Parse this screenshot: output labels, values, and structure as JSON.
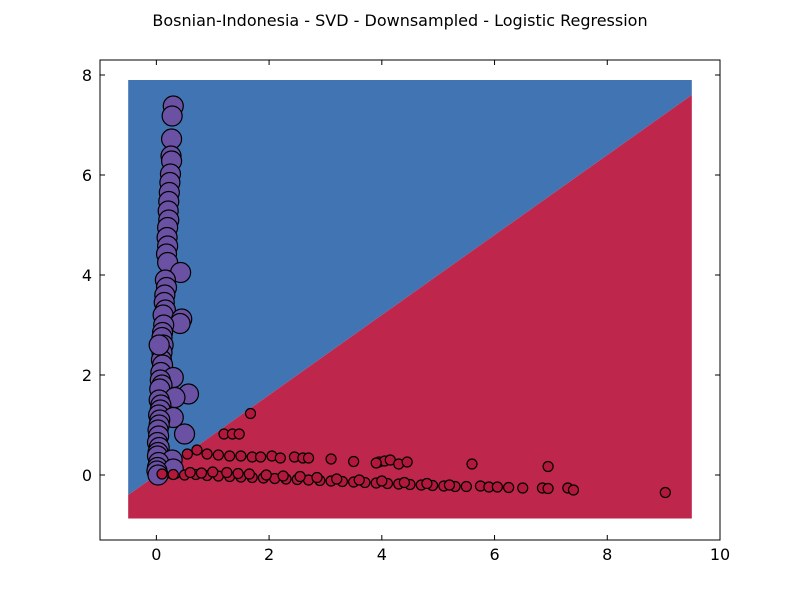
{
  "chart_data": {
    "type": "scatter",
    "title": "Bosnian-Indonesia - SVD - Downsampled - Logistic Regression",
    "xlabel": "",
    "ylabel": "",
    "xlim": [
      -1,
      10
    ],
    "ylim": [
      -1.3,
      8.3
    ],
    "xticks": [
      0,
      2,
      4,
      6,
      8,
      10
    ],
    "yticks": [
      0,
      2,
      4,
      6,
      8
    ],
    "xtick_labels": [
      "0",
      "2",
      "4",
      "6",
      "8",
      "10"
    ],
    "ytick_labels": [
      "0",
      "2",
      "4",
      "6",
      "8"
    ],
    "grid": false,
    "decision_regions": {
      "x_range": [
        -0.5,
        9.5
      ],
      "y_range": [
        -0.87,
        7.9
      ],
      "boundary": {
        "slope": 0.8,
        "intercept": 0.0
      },
      "upper_color": "#4174b3",
      "lower_color": "#bf264b"
    },
    "series": [
      {
        "color": "#6a51a3",
        "marker": "large",
        "points": [
          [
            0.3,
            7.38
          ],
          [
            0.28,
            7.18
          ],
          [
            0.27,
            6.72
          ],
          [
            0.26,
            6.38
          ],
          [
            0.27,
            6.28
          ],
          [
            0.25,
            6.02
          ],
          [
            0.24,
            5.85
          ],
          [
            0.23,
            5.65
          ],
          [
            0.22,
            5.47
          ],
          [
            0.21,
            5.28
          ],
          [
            0.22,
            5.1
          ],
          [
            0.2,
            4.95
          ],
          [
            0.19,
            4.75
          ],
          [
            0.2,
            4.58
          ],
          [
            0.18,
            4.42
          ],
          [
            0.2,
            4.25
          ],
          [
            0.43,
            4.05
          ],
          [
            0.16,
            3.9
          ],
          [
            0.18,
            3.75
          ],
          [
            0.15,
            3.6
          ],
          [
            0.14,
            3.45
          ],
          [
            0.16,
            3.3
          ],
          [
            0.12,
            3.2
          ],
          [
            0.45,
            3.12
          ],
          [
            0.42,
            3.03
          ],
          [
            0.13,
            3.0
          ],
          [
            0.11,
            2.85
          ],
          [
            0.1,
            2.75
          ],
          [
            0.12,
            2.6
          ],
          [
            0.1,
            2.45
          ],
          [
            0.09,
            2.3
          ],
          [
            0.11,
            2.2
          ],
          [
            0.08,
            2.05
          ],
          [
            0.3,
            1.95
          ],
          [
            0.07,
            1.9
          ],
          [
            0.1,
            1.8
          ],
          [
            0.06,
            1.72
          ],
          [
            0.57,
            1.62
          ],
          [
            0.33,
            1.55
          ],
          [
            0.05,
            1.5
          ],
          [
            0.08,
            1.4
          ],
          [
            0.07,
            1.3
          ],
          [
            0.04,
            1.2
          ],
          [
            0.3,
            1.15
          ],
          [
            0.06,
            1.1
          ],
          [
            0.05,
            1.0
          ],
          [
            0.03,
            0.9
          ],
          [
            0.5,
            0.82
          ],
          [
            0.04,
            0.78
          ],
          [
            0.02,
            0.65
          ],
          [
            0.05,
            0.55
          ],
          [
            0.03,
            0.45
          ],
          [
            0.02,
            0.38
          ],
          [
            0.28,
            0.3
          ],
          [
            0.04,
            0.25
          ],
          [
            0.02,
            0.15
          ],
          [
            0.3,
            0.12
          ],
          [
            0.01,
            0.08
          ],
          [
            0.03,
            0.0
          ],
          [
            0.05,
            2.6
          ]
        ]
      },
      {
        "color": "#b2183b",
        "marker": "small",
        "points": [
          [
            1.67,
            1.23
          ],
          [
            1.2,
            0.82
          ],
          [
            1.35,
            0.82
          ],
          [
            1.47,
            0.82
          ],
          [
            0.55,
            0.42
          ],
          [
            0.72,
            0.5
          ],
          [
            0.9,
            0.42
          ],
          [
            1.1,
            0.4
          ],
          [
            1.3,
            0.38
          ],
          [
            1.5,
            0.38
          ],
          [
            1.7,
            0.36
          ],
          [
            1.85,
            0.36
          ],
          [
            2.05,
            0.38
          ],
          [
            2.2,
            0.34
          ],
          [
            2.45,
            0.36
          ],
          [
            2.6,
            0.34
          ],
          [
            2.7,
            0.34
          ],
          [
            3.1,
            0.32
          ],
          [
            3.5,
            0.27
          ],
          [
            3.95,
            0.26
          ],
          [
            4.05,
            0.28
          ],
          [
            4.15,
            0.3
          ],
          [
            4.3,
            0.22
          ],
          [
            4.45,
            0.26
          ],
          [
            5.6,
            0.22
          ],
          [
            6.95,
            0.17
          ],
          [
            3.9,
            0.24
          ],
          [
            0.1,
            0.02
          ],
          [
            0.3,
            0.01
          ],
          [
            0.5,
            0.0
          ],
          [
            0.7,
            0.01
          ],
          [
            0.9,
            -0.01
          ],
          [
            1.1,
            -0.02
          ],
          [
            1.3,
            -0.03
          ],
          [
            1.5,
            -0.04
          ],
          [
            1.7,
            -0.05
          ],
          [
            1.9,
            -0.06
          ],
          [
            2.1,
            -0.07
          ],
          [
            2.3,
            -0.08
          ],
          [
            2.5,
            -0.09
          ],
          [
            2.7,
            -0.1
          ],
          [
            2.9,
            -0.11
          ],
          [
            3.1,
            -0.12
          ],
          [
            3.3,
            -0.13
          ],
          [
            3.5,
            -0.14
          ],
          [
            3.7,
            -0.15
          ],
          [
            3.9,
            -0.16
          ],
          [
            4.1,
            -0.17
          ],
          [
            4.3,
            -0.18
          ],
          [
            4.5,
            -0.19
          ],
          [
            4.7,
            -0.2
          ],
          [
            4.9,
            -0.21
          ],
          [
            5.1,
            -0.22
          ],
          [
            5.3,
            -0.23
          ],
          [
            5.5,
            -0.23
          ],
          [
            5.75,
            -0.22
          ],
          [
            5.9,
            -0.24
          ],
          [
            6.05,
            -0.24
          ],
          [
            6.25,
            -0.25
          ],
          [
            6.5,
            -0.26
          ],
          [
            6.85,
            -0.26
          ],
          [
            6.95,
            -0.27
          ],
          [
            7.3,
            -0.26
          ],
          [
            7.4,
            -0.3
          ],
          [
            9.03,
            -0.35
          ],
          [
            0.6,
            0.05
          ],
          [
            0.8,
            0.04
          ],
          [
            1.0,
            0.06
          ],
          [
            1.25,
            0.05
          ],
          [
            1.45,
            0.03
          ],
          [
            1.65,
            0.02
          ],
          [
            1.95,
            0.0
          ],
          [
            2.25,
            -0.02
          ],
          [
            2.55,
            -0.03
          ],
          [
            2.85,
            -0.05
          ],
          [
            3.2,
            -0.08
          ],
          [
            3.6,
            -0.1
          ],
          [
            4.0,
            -0.12
          ],
          [
            4.4,
            -0.15
          ],
          [
            4.8,
            -0.17
          ],
          [
            5.2,
            -0.2
          ]
        ]
      }
    ]
  }
}
